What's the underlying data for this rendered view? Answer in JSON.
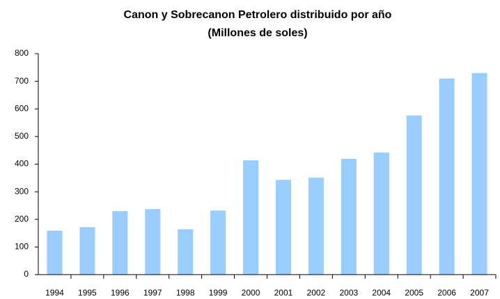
{
  "chart_data": {
    "type": "bar",
    "title": "Canon y Sobrecanon Petrolero distribuido por año",
    "subtitle": "(Millones de soles)",
    "categories": [
      "1994",
      "1995",
      "1996",
      "1997",
      "1998",
      "1999",
      "2000",
      "2001",
      "2002",
      "2003",
      "2004",
      "2005",
      "2006",
      "2007"
    ],
    "values": [
      159,
      172,
      230,
      237,
      164,
      232,
      414,
      343,
      351,
      419,
      442,
      576,
      710,
      730
    ],
    "color": "#99ccff",
    "ylim": [
      0,
      800
    ],
    "yticks": [
      0,
      100,
      200,
      300,
      400,
      500,
      600,
      700,
      800
    ],
    "grid": false
  }
}
